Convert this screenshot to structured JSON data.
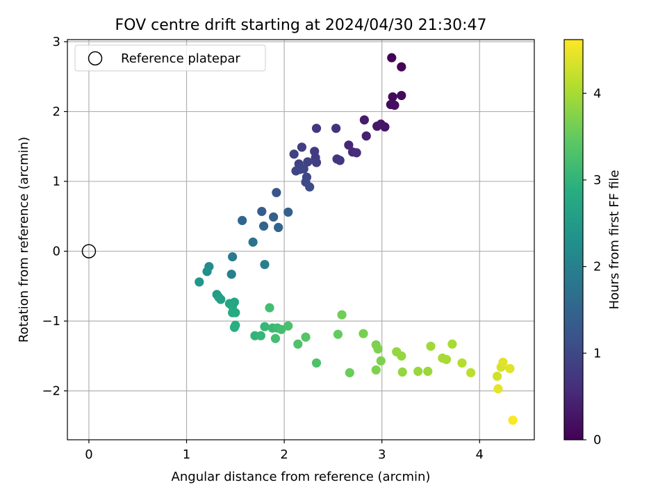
{
  "chart_data": {
    "type": "scatter",
    "title": "FOV centre drift starting at 2024/04/30 21:30:47",
    "xlabel": "Angular distance from reference (arcmin)",
    "ylabel": "Rotation from reference (arcmin)",
    "xlim": [
      -0.22,
      4.56
    ],
    "ylim": [
      -2.7,
      3.03
    ],
    "xticks": [
      0,
      1,
      2,
      3,
      4
    ],
    "yticks": [
      -2,
      -1,
      0,
      1,
      2,
      3
    ],
    "grid": true,
    "legend": {
      "placement": "upper-left",
      "entries": [
        "Reference platepar"
      ]
    },
    "reference_point": {
      "label": "Reference platepar",
      "x": 0,
      "y": 0,
      "marker": "open-circle"
    },
    "colorbar": {
      "label": "Hours from first FF file",
      "colormap": "viridis",
      "range": [
        0,
        4.62
      ],
      "ticks": [
        0,
        1,
        2,
        3,
        4
      ]
    },
    "series": [
      {
        "points": [
          [
            3.1,
            2.77,
            0.0
          ],
          [
            3.2,
            2.64,
            0.05
          ],
          [
            3.11,
            2.21,
            0.1
          ],
          [
            3.2,
            2.23,
            0.12
          ],
          [
            3.09,
            2.1,
            0.15
          ],
          [
            3.13,
            2.09,
            0.17
          ],
          [
            3.03,
            1.78,
            0.25
          ],
          [
            2.99,
            1.82,
            0.28
          ],
          [
            2.95,
            1.79,
            0.3
          ],
          [
            2.82,
            1.88,
            0.35
          ],
          [
            2.84,
            1.65,
            0.4
          ],
          [
            2.66,
            1.52,
            0.5
          ],
          [
            2.7,
            1.42,
            0.55
          ],
          [
            2.74,
            1.41,
            0.58
          ],
          [
            2.53,
            1.76,
            0.65
          ],
          [
            2.54,
            1.32,
            0.7
          ],
          [
            2.57,
            1.3,
            0.72
          ],
          [
            2.33,
            1.76,
            0.75
          ],
          [
            2.31,
            1.43,
            0.8
          ],
          [
            2.32,
            1.34,
            0.82
          ],
          [
            2.33,
            1.27,
            0.85
          ],
          [
            2.18,
            1.49,
            0.85
          ],
          [
            2.1,
            1.39,
            0.88
          ],
          [
            2.15,
            1.25,
            0.9
          ],
          [
            2.24,
            1.28,
            0.9
          ],
          [
            2.2,
            1.18,
            0.95
          ],
          [
            2.12,
            1.15,
            0.95
          ],
          [
            2.16,
            1.17,
            0.97
          ],
          [
            2.23,
            1.06,
            1.0
          ],
          [
            2.22,
            0.99,
            1.02
          ],
          [
            2.26,
            0.92,
            1.05
          ],
          [
            1.92,
            0.84,
            1.2
          ],
          [
            1.77,
            0.57,
            1.35
          ],
          [
            1.89,
            0.49,
            1.4
          ],
          [
            2.04,
            0.56,
            1.4
          ],
          [
            1.57,
            0.44,
            1.5
          ],
          [
            1.79,
            0.36,
            1.5
          ],
          [
            1.94,
            0.34,
            1.5
          ],
          [
            1.68,
            0.13,
            1.75
          ],
          [
            1.47,
            -0.08,
            1.9
          ],
          [
            1.8,
            -0.19,
            1.95
          ],
          [
            1.46,
            -0.33,
            2.0
          ],
          [
            1.23,
            -0.22,
            2.2
          ],
          [
            1.21,
            -0.29,
            2.3
          ],
          [
            1.13,
            -0.44,
            2.4
          ],
          [
            1.31,
            -0.62,
            2.5
          ],
          [
            1.33,
            -0.66,
            2.55
          ],
          [
            1.35,
            -0.69,
            2.6
          ],
          [
            1.44,
            -0.75,
            2.7
          ],
          [
            1.49,
            -0.73,
            2.7
          ],
          [
            1.47,
            -0.79,
            2.75
          ],
          [
            1.47,
            -0.88,
            2.8
          ],
          [
            1.5,
            -0.88,
            2.8
          ],
          [
            1.5,
            -1.06,
            2.85
          ],
          [
            1.49,
            -1.09,
            2.9
          ],
          [
            1.85,
            -0.81,
            3.2
          ],
          [
            1.7,
            -1.21,
            3.0
          ],
          [
            1.76,
            -1.21,
            3.05
          ],
          [
            1.8,
            -1.08,
            3.05
          ],
          [
            1.88,
            -1.1,
            3.1
          ],
          [
            1.93,
            -1.1,
            3.15
          ],
          [
            1.97,
            -1.12,
            3.2
          ],
          [
            2.04,
            -1.07,
            3.25
          ],
          [
            1.91,
            -1.25,
            3.2
          ],
          [
            2.14,
            -1.33,
            3.3
          ],
          [
            2.22,
            -1.23,
            3.35
          ],
          [
            2.33,
            -1.6,
            3.3
          ],
          [
            2.55,
            -1.19,
            3.5
          ],
          [
            2.59,
            -0.91,
            3.6
          ],
          [
            2.67,
            -1.74,
            3.55
          ],
          [
            2.81,
            -1.18,
            3.65
          ],
          [
            2.94,
            -1.34,
            3.7
          ],
          [
            2.96,
            -1.4,
            3.7
          ],
          [
            2.99,
            -1.57,
            3.7
          ],
          [
            2.94,
            -1.7,
            3.7
          ],
          [
            3.15,
            -1.44,
            3.85
          ],
          [
            3.2,
            -1.5,
            3.85
          ],
          [
            3.21,
            -1.73,
            3.85
          ],
          [
            3.37,
            -1.72,
            3.9
          ],
          [
            3.47,
            -1.72,
            3.9
          ],
          [
            3.5,
            -1.36,
            3.95
          ],
          [
            3.62,
            -1.53,
            4.0
          ],
          [
            3.66,
            -1.55,
            4.0
          ],
          [
            3.72,
            -1.33,
            4.0
          ],
          [
            3.82,
            -1.6,
            4.1
          ],
          [
            3.91,
            -1.74,
            4.15
          ],
          [
            4.18,
            -1.79,
            4.3
          ],
          [
            4.22,
            -1.66,
            4.35
          ],
          [
            4.24,
            -1.59,
            4.4
          ],
          [
            4.31,
            -1.68,
            4.4
          ],
          [
            4.19,
            -1.97,
            4.45
          ],
          [
            4.34,
            -2.42,
            4.6
          ]
        ]
      }
    ]
  }
}
